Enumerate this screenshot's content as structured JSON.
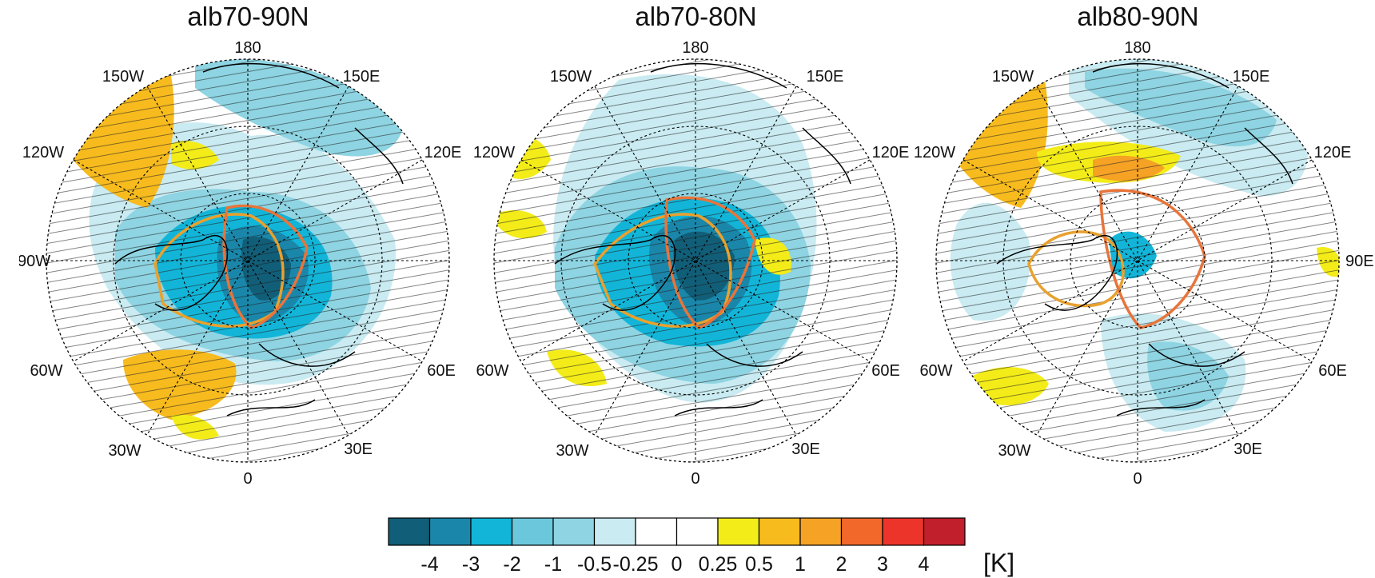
{
  "panels": [
    {
      "id": "p1",
      "title": "alb70-90N"
    },
    {
      "id": "p2",
      "title": "alb70-80N"
    },
    {
      "id": "p3",
      "title": "alb80-90N"
    }
  ],
  "longitude_labels": {
    "l180": "180",
    "l150E": "150E",
    "l120E": "120E",
    "l90E": "90E",
    "l60E": "60E",
    "l30E": "30E",
    "l0": "0",
    "l30W": "30W",
    "l60W": "60W",
    "l90W": "90W",
    "l120W": "120W",
    "l150W": "150W"
  },
  "colorbar": {
    "colors": [
      "#115e78",
      "#1a87aa",
      "#12b5d8",
      "#6bc8dc",
      "#8ed4e2",
      "#c9ebf1",
      "#ffffff",
      "#ffffff",
      "#f3ec18",
      "#f8bb1e",
      "#f6a225",
      "#f2682a",
      "#ec342b",
      "#c01f2b"
    ],
    "ticks": [
      "-4",
      "-3",
      "-2",
      "-1",
      "-0.5",
      "-0.25",
      "0",
      "0.25",
      "0.5",
      "1",
      "2",
      "3",
      "4"
    ],
    "unit": "[K]"
  }
}
